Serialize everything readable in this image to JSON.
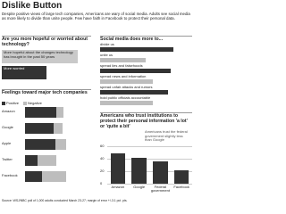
{
  "title": "Dislike Button",
  "subtitle": "Despite positive views of large tech companies, Americans are wary of social media. Adults see social media as more likely to divide than unite people. Few have faith in Facebook to protect their personal data.",
  "source": "Source: WSJ/NBC poll of 1,000 adults conducted March 23-27; margin of error +/-3.1 pct. pts.",
  "chart_data": [
    {
      "type": "hbar",
      "title": "Are you more hopeful or worried about technology?",
      "categories": [
        "More hopeful about the changes technology has brought in the past 50 years",
        "More worried"
      ],
      "values": [
        61,
        36
      ],
      "colors": [
        "#c9c9c9",
        "#333333"
      ],
      "xlim": [
        0,
        70
      ]
    },
    {
      "type": "stacked",
      "title": "Feelings toward major tech companies",
      "categories": [
        "Amazon",
        "Google",
        "Apple",
        "Twitter",
        "Facebook"
      ],
      "series": [
        {
          "name": "Positive",
          "color": "#333333",
          "values": [
            49,
            45,
            47,
            19,
            27
          ]
        },
        {
          "name": "Negative",
          "color": "#bdbdbd",
          "values": [
            11,
            14,
            17,
            30,
            37
          ]
        }
      ],
      "xlim": [
        0,
        100
      ]
    },
    {
      "type": "hbar",
      "title": "Social media does more to...",
      "categories": [
        "divide us",
        "unite us",
        "spread lies and falsehoods",
        "spread news and information",
        "spread unfair attacks and rumors",
        "hold public officials accountable"
      ],
      "values": [
        57,
        35,
        55,
        41,
        53,
        41
      ],
      "colors": [
        "#333333",
        "#bdbdbd",
        "#333333",
        "#bdbdbd",
        "#333333",
        "#bdbdbd"
      ],
      "xlim": [
        0,
        70
      ]
    },
    {
      "type": "column",
      "title": "Americans who trust institutions to protect their personal information 'a lot' or 'quite a bit'",
      "annotation": "Americans trust the federal government slightly less than Google",
      "categories": [
        "Amazon",
        "Google",
        "Federal government",
        "Facebook"
      ],
      "values": [
        49,
        41,
        36,
        22
      ],
      "color": "#333333",
      "ylim": [
        0,
        60
      ],
      "yticks": [
        0,
        20,
        40,
        60
      ],
      "grid": true
    }
  ]
}
